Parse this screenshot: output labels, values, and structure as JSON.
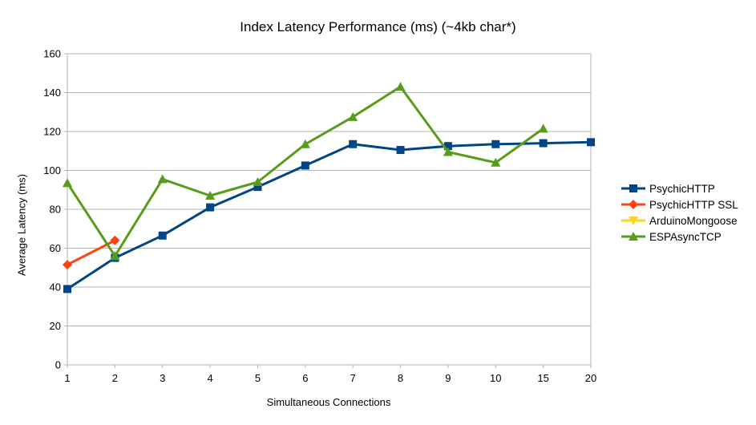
{
  "chart_data": {
    "type": "line",
    "title": "Index Latency Performance (ms) (~4kb char*)",
    "xlabel": "Simultaneous Connections",
    "ylabel": "Average Latency (ms)",
    "categories": [
      "1",
      "2",
      "3",
      "4",
      "5",
      "6",
      "7",
      "8",
      "9",
      "10",
      "15",
      "20"
    ],
    "ylim": [
      0,
      160
    ],
    "ytick_step": 20,
    "grid": true,
    "axis_color": "#b3b3b3",
    "legend_position": "right",
    "series": [
      {
        "name": "PsychicHTTP",
        "color": "#004586",
        "marker": "square",
        "values": [
          39,
          55,
          66.5,
          81,
          91.5,
          102.5,
          113.5,
          110.5,
          112.5,
          113.5,
          114,
          114.5
        ]
      },
      {
        "name": "PsychicHTTP SSL",
        "color": "#FF420E",
        "marker": "diamond",
        "values": [
          51.5,
          64,
          null,
          null,
          null,
          null,
          null,
          null,
          null,
          null,
          null,
          null
        ]
      },
      {
        "name": "ArduinoMongoose",
        "color": "#FFD320",
        "marker": "triangle-down",
        "values": [
          null,
          null,
          null,
          null,
          null,
          null,
          null,
          null,
          null,
          null,
          null,
          null
        ]
      },
      {
        "name": "ESPAsyncTCP",
        "color": "#579D1C",
        "marker": "triangle-up",
        "values": [
          93.5,
          56,
          95.5,
          87,
          94,
          113.5,
          127.5,
          143,
          109.5,
          104,
          121.5,
          null
        ]
      }
    ]
  }
}
